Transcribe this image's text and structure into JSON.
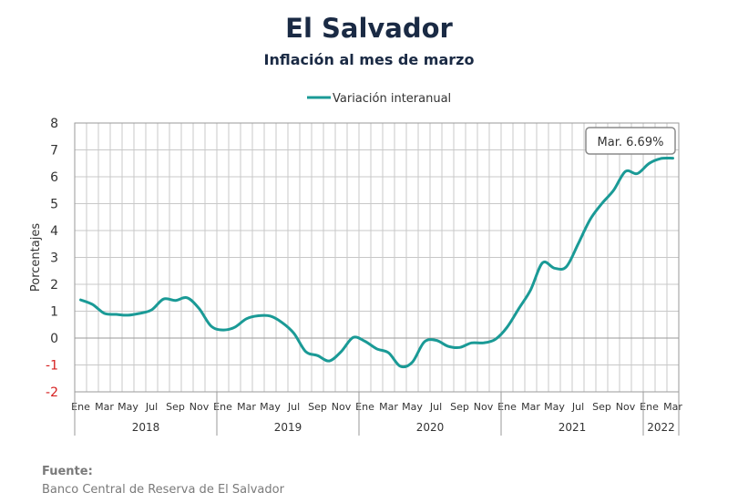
{
  "header": {
    "title": "El Salvador",
    "subtitle": "Inflación al mes de marzo"
  },
  "footer": {
    "source_label": "Fuente:",
    "source_text": "Banco Central de Reserva de El Salvador"
  },
  "chart_data": {
    "type": "line",
    "ylabel": "Porcentajes",
    "ylim": [
      -2,
      8
    ],
    "yticks": [
      -2,
      -1,
      0,
      1,
      2,
      3,
      4,
      5,
      6,
      7,
      8
    ],
    "grid": true,
    "legend_position": "top-center",
    "month_tick_labels": [
      "Ene",
      "Mar",
      "May",
      "Jul",
      "Sep",
      "Nov",
      "Ene",
      "Mar",
      "May",
      "Jul",
      "Sep",
      "Nov",
      "Ene",
      "Mar",
      "May",
      "Jul",
      "Sep",
      "Nov",
      "Ene",
      "Mar",
      "May",
      "Jul",
      "Sep",
      "Nov",
      "Ene",
      "Mar"
    ],
    "years": [
      {
        "label": "2018",
        "months": 12
      },
      {
        "label": "2019",
        "months": 12
      },
      {
        "label": "2020",
        "months": 12
      },
      {
        "label": "2021",
        "months": 12
      },
      {
        "label": "2022",
        "months": 3
      }
    ],
    "x": [
      "2018-01",
      "2018-02",
      "2018-03",
      "2018-04",
      "2018-05",
      "2018-06",
      "2018-07",
      "2018-08",
      "2018-09",
      "2018-10",
      "2018-11",
      "2018-12",
      "2019-01",
      "2019-02",
      "2019-03",
      "2019-04",
      "2019-05",
      "2019-06",
      "2019-07",
      "2019-08",
      "2019-09",
      "2019-10",
      "2019-11",
      "2019-12",
      "2020-01",
      "2020-02",
      "2020-03",
      "2020-04",
      "2020-05",
      "2020-06",
      "2020-07",
      "2020-08",
      "2020-09",
      "2020-10",
      "2020-11",
      "2020-12",
      "2021-01",
      "2021-02",
      "2021-03",
      "2021-04",
      "2021-05",
      "2021-06",
      "2021-07",
      "2021-08",
      "2021-09",
      "2021-10",
      "2021-11",
      "2021-12",
      "2022-01",
      "2022-02",
      "2022-03"
    ],
    "series": [
      {
        "name": "Variación interanual",
        "color": "#1a9a96",
        "values": [
          1.42,
          1.25,
          0.92,
          0.88,
          0.85,
          0.92,
          1.05,
          1.45,
          1.4,
          1.5,
          1.1,
          0.45,
          0.3,
          0.4,
          0.72,
          0.83,
          0.82,
          0.58,
          0.18,
          -0.5,
          -0.65,
          -0.85,
          -0.5,
          0.02,
          -0.12,
          -0.4,
          -0.55,
          -1.05,
          -0.9,
          -0.15,
          -0.08,
          -0.3,
          -0.35,
          -0.18,
          -0.18,
          -0.05,
          0.4,
          1.1,
          1.8,
          2.8,
          2.6,
          2.65,
          3.5,
          4.4,
          5.0,
          5.5,
          6.2,
          6.12,
          6.5,
          6.68,
          6.69
        ]
      }
    ],
    "annotation": {
      "text": "Mar. 6.69%",
      "x": "2022-03",
      "y": 6.69
    }
  }
}
